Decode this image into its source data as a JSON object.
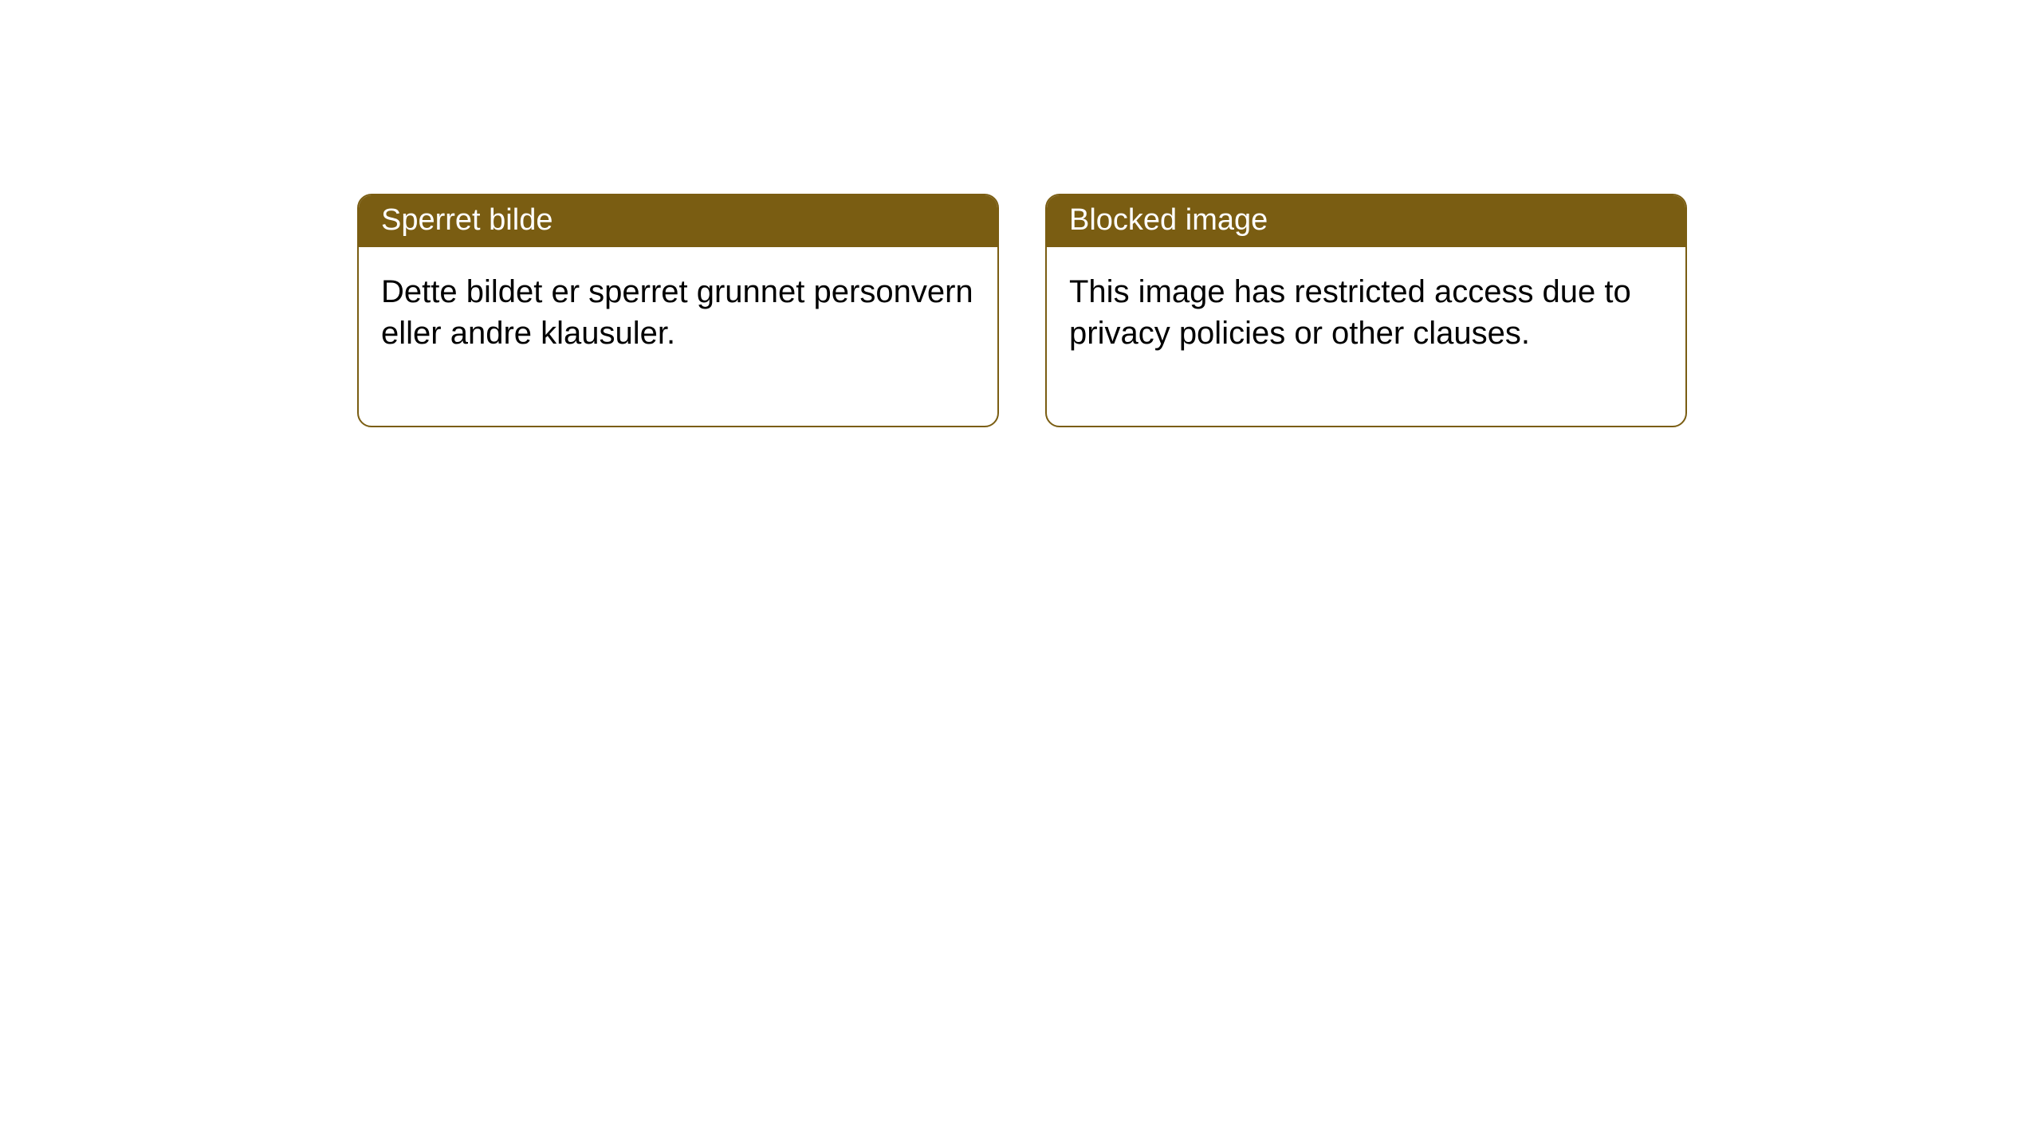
{
  "cards": [
    {
      "title": "Sperret bilde",
      "body": "Dette bildet er sperret grunnet personvern eller andre klausuler."
    },
    {
      "title": "Blocked image",
      "body": "This image has restricted access due to privacy policies or other clauses."
    }
  ],
  "style": {
    "header_bg": "#7a5d12",
    "header_text_color": "#ffffff",
    "border_color": "#7a5d12",
    "body_text_color": "#000000",
    "page_bg": "#ffffff",
    "border_radius": 18,
    "title_fontsize": 38,
    "body_fontsize": 40
  }
}
